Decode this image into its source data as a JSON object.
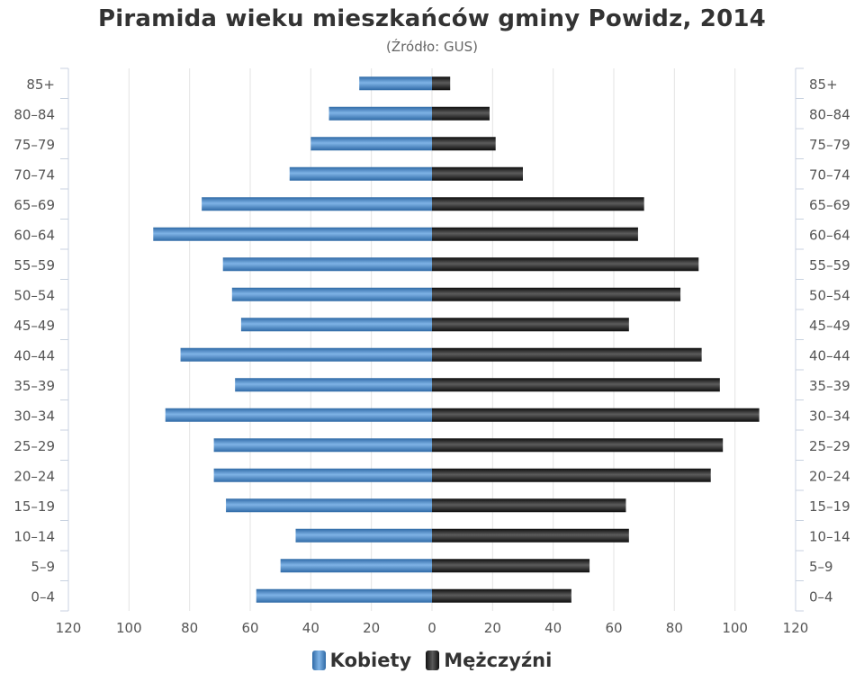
{
  "chart_data": {
    "type": "bar",
    "orientation": "horizontal-pyramid",
    "title": "Piramida wieku mieszkańców gminy Powidz, 2014",
    "subtitle": "(Źródło: GUS)",
    "categories": [
      "85+",
      "80–84",
      "75–79",
      "70–74",
      "65–69",
      "60–64",
      "55–59",
      "50–54",
      "45–49",
      "40–44",
      "35–39",
      "30–34",
      "25–29",
      "20–24",
      "15–19",
      "10–14",
      "5–9",
      "0–4"
    ],
    "series": [
      {
        "name": "Kobiety",
        "side": "left",
        "color": "#4a8ac9",
        "values": [
          24,
          34,
          40,
          47,
          76,
          92,
          69,
          66,
          63,
          83,
          65,
          88,
          72,
          72,
          68,
          45,
          50,
          58
        ]
      },
      {
        "name": "Mężczyźni",
        "side": "right",
        "color": "#222222",
        "values": [
          6,
          19,
          21,
          30,
          70,
          68,
          88,
          82,
          65,
          89,
          95,
          108,
          96,
          92,
          64,
          65,
          52,
          46
        ]
      }
    ],
    "xlim": [
      -120,
      120
    ],
    "xticks": [
      120,
      100,
      80,
      60,
      40,
      20,
      0,
      20,
      40,
      60,
      80,
      100,
      120
    ],
    "grid": true,
    "legend_position": "bottom-center",
    "category_labels_both_sides": true
  }
}
